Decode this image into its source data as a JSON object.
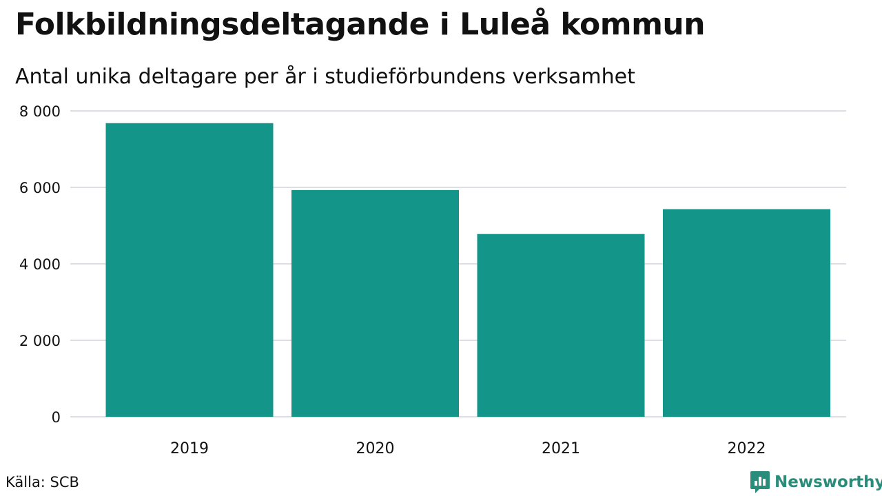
{
  "title": "Folkbildningsdeltagande i Luleå kommun",
  "subtitle": "Antal unika deltagare per år i studieförbundens verksamhet",
  "source": "Källa: SCB",
  "brand": {
    "name": "Newsworthy",
    "icon": "newsworthy-logo-icon",
    "color": "#2a8c7a"
  },
  "colors": {
    "bar": "#14958a",
    "grid": "#dddde3"
  },
  "chart_data": {
    "type": "bar",
    "categories": [
      "2019",
      "2020",
      "2021",
      "2022"
    ],
    "values": [
      7680,
      5930,
      4780,
      5430
    ],
    "title": "Folkbildningsdeltagande i Luleå kommun",
    "subtitle": "Antal unika deltagare per år i studieförbundens verksamhet",
    "xlabel": "",
    "ylabel": "",
    "ylim": [
      0,
      8000
    ],
    "yticks": [
      0,
      2000,
      4000,
      6000,
      8000
    ],
    "ytick_labels": [
      "0",
      "2 000",
      "4 000",
      "6 000",
      "8 000"
    ],
    "grid": true,
    "legend": "none"
  }
}
